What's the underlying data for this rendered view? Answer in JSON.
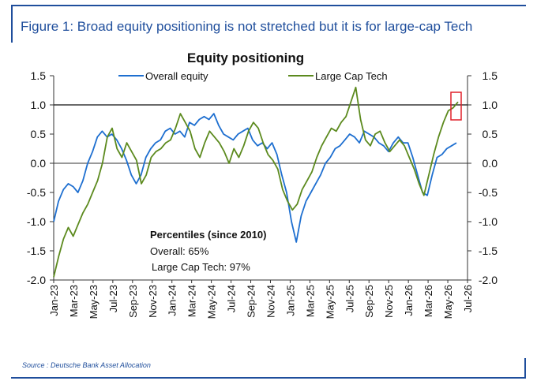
{
  "header": {
    "figure_title": "Figure 1: Broad equity positioning is not stretched but it is for large-cap Tech"
  },
  "footer": {
    "source": "Source : Deutsche Bank Asset Allocation"
  },
  "annotations": {
    "heading": "Percentiles (since 2010)",
    "overall": "Overall: 65%",
    "tech": "Large Cap Tech: 97%"
  },
  "colors": {
    "overall": "#1e6fd0",
    "tech": "#5c8a1e",
    "highlight_box": "#e0202a",
    "brand": "#1f4e9c"
  },
  "chart_data": {
    "type": "line",
    "title": "Equity positioning",
    "ylim": [
      -2.0,
      1.5
    ],
    "yticks_left": [
      "1.5",
      "1.0",
      "0.5",
      "0.0",
      "-0.5",
      "-1.0",
      "-1.5",
      "-2.0"
    ],
    "yticks_right": [
      "1.5",
      "1.0",
      "0.5",
      "0.0",
      "-0.5",
      "-1.0",
      "-1.5",
      "-2.0"
    ],
    "reference_line": 1.0,
    "x_labels": [
      "Jan-23",
      "Mar-23",
      "May-23",
      "Jul-23",
      "Sep-23",
      "Nov-23",
      "Jan-24",
      "Mar-24",
      "May-24",
      "Jul-24",
      "Sep-24",
      "Nov-24",
      "Jan-25",
      "Mar-25",
      "May-25",
      "Jul-25",
      "Sep-25",
      "Nov-25",
      "Jan-26",
      "Mar-26",
      "May-26",
      "Jul-26"
    ],
    "legend_position": "top",
    "series": [
      {
        "name": "Overall equity",
        "values": [
          -1.0,
          -0.65,
          -0.45,
          -0.35,
          -0.4,
          -0.5,
          -0.3,
          0.0,
          0.2,
          0.45,
          0.55,
          0.45,
          0.5,
          0.4,
          0.25,
          0.05,
          -0.2,
          -0.35,
          -0.2,
          0.1,
          0.25,
          0.35,
          0.4,
          0.55,
          0.6,
          0.5,
          0.55,
          0.45,
          0.7,
          0.65,
          0.75,
          0.8,
          0.75,
          0.85,
          0.65,
          0.5,
          0.45,
          0.4,
          0.5,
          0.55,
          0.6,
          0.4,
          0.3,
          0.35,
          0.25,
          0.35,
          0.15,
          -0.2,
          -0.5,
          -1.0,
          -1.35,
          -0.9,
          -0.65,
          -0.5,
          -0.35,
          -0.2,
          0.0,
          0.1,
          0.25,
          0.3,
          0.4,
          0.5,
          0.45,
          0.35,
          0.55,
          0.5,
          0.45,
          0.35,
          0.3,
          0.2,
          0.35,
          0.45,
          0.35,
          0.35,
          0.1,
          -0.2,
          -0.5,
          -0.55,
          -0.2,
          0.1,
          0.15,
          0.25,
          0.3,
          0.35
        ]
      },
      {
        "name": "Large Cap Tech",
        "values": [
          -1.95,
          -1.6,
          -1.3,
          -1.1,
          -1.25,
          -1.05,
          -0.85,
          -0.7,
          -0.5,
          -0.3,
          0.0,
          0.45,
          0.6,
          0.25,
          0.1,
          0.35,
          0.2,
          0.05,
          -0.35,
          -0.2,
          0.1,
          0.2,
          0.25,
          0.35,
          0.4,
          0.6,
          0.85,
          0.7,
          0.55,
          0.25,
          0.1,
          0.35,
          0.55,
          0.45,
          0.35,
          0.2,
          0.0,
          0.25,
          0.1,
          0.3,
          0.55,
          0.7,
          0.6,
          0.35,
          0.15,
          0.05,
          -0.1,
          -0.45,
          -0.65,
          -0.8,
          -0.7,
          -0.45,
          -0.3,
          -0.15,
          0.1,
          0.3,
          0.45,
          0.6,
          0.55,
          0.7,
          0.8,
          1.05,
          1.3,
          0.75,
          0.4,
          0.3,
          0.5,
          0.55,
          0.35,
          0.2,
          0.3,
          0.4,
          0.3,
          0.1,
          -0.1,
          -0.35,
          -0.55,
          -0.2,
          0.15,
          0.45,
          0.7,
          0.9,
          0.95,
          1.05
        ]
      }
    ]
  }
}
